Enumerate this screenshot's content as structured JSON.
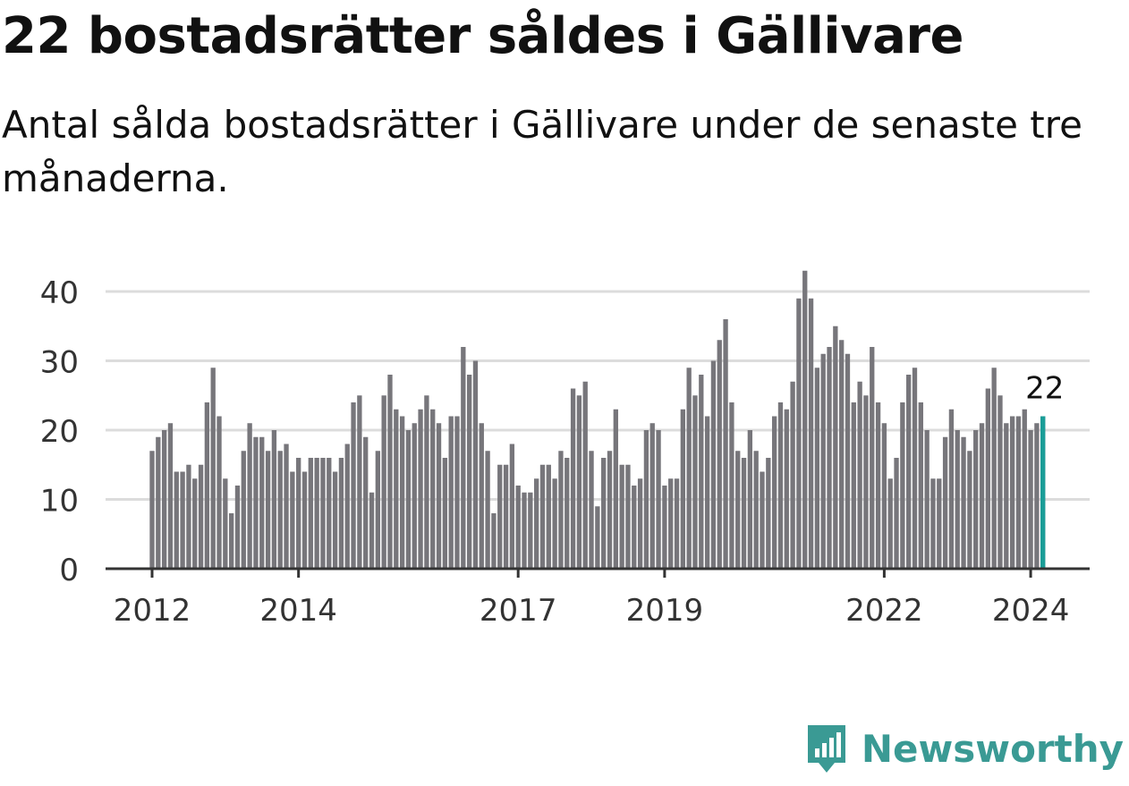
{
  "header": {
    "title": "22 bostadsrätter såldes i Gällivare",
    "subtitle": "Antal sålda bostadsrätter i Gällivare under de senaste tre månaderna."
  },
  "brand": {
    "name": "Newsworthy",
    "color": "#3a9a94"
  },
  "chart_data": {
    "type": "bar",
    "title": "22 bostadsrätter såldes i Gällivare",
    "subtitle": "Antal sålda bostadsrätter i Gällivare under de senaste tre månaderna.",
    "xlabel": "",
    "ylabel": "",
    "ylim": [
      0,
      40
    ],
    "yticks": [
      0,
      10,
      20,
      30,
      40
    ],
    "grid": true,
    "start": "2012-01",
    "xtick_labels": [
      {
        "label": "2012",
        "index": 0
      },
      {
        "label": "2014",
        "index": 24
      },
      {
        "label": "2017",
        "index": 60
      },
      {
        "label": "2019",
        "index": 84
      },
      {
        "label": "2022",
        "index": 120
      },
      {
        "label": "2024",
        "index": 144
      }
    ],
    "values": [
      17,
      19,
      20,
      21,
      14,
      14,
      15,
      13,
      15,
      24,
      29,
      22,
      13,
      8,
      12,
      17,
      21,
      19,
      19,
      17,
      20,
      17,
      18,
      14,
      16,
      14,
      16,
      16,
      16,
      16,
      14,
      16,
      18,
      24,
      25,
      19,
      11,
      17,
      25,
      28,
      23,
      22,
      20,
      21,
      23,
      25,
      23,
      21,
      16,
      22,
      22,
      32,
      28,
      30,
      21,
      17,
      8,
      15,
      15,
      18,
      12,
      11,
      11,
      13,
      15,
      15,
      13,
      17,
      16,
      26,
      25,
      27,
      17,
      9,
      16,
      17,
      23,
      15,
      15,
      12,
      13,
      20,
      21,
      20,
      12,
      13,
      13,
      23,
      29,
      25,
      28,
      22,
      30,
      33,
      36,
      24,
      17,
      16,
      20,
      17,
      14,
      16,
      22,
      24,
      23,
      27,
      39,
      43,
      39,
      29,
      31,
      32,
      35,
      33,
      31,
      24,
      27,
      25,
      32,
      24,
      21,
      13,
      16,
      24,
      28,
      29,
      24,
      20,
      13,
      13,
      19,
      23,
      20,
      19,
      17,
      20,
      21,
      26,
      29,
      25,
      21,
      22,
      22,
      23,
      20,
      21,
      22
    ],
    "highlight": {
      "index": 146,
      "value": 22,
      "label": "22",
      "color": "#1a9e98"
    },
    "bar_color": "#77767b",
    "grid_color": "#dcdcdc",
    "axis_color": "#333333"
  }
}
